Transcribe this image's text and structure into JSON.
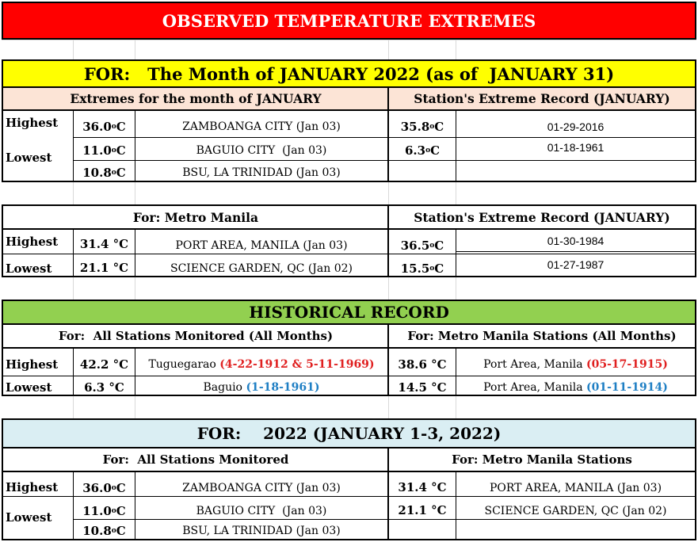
{
  "title": "OBSERVED TEMPERATURE EXTREMES",
  "month_banner": "FOR:   The Month of JANUARY 2022 (as of  JANUARY 31)",
  "section1": {
    "left_header": "Extremes for the month of JANUARY",
    "right_header": "Station's Extreme Record (JANUARY)",
    "rows": [
      {
        "label": "Highest",
        "value": "36.0",
        "unit": "C",
        "station": "ZAMBOANGA CITY (Jan 03)",
        "rec_value": "35.8",
        "rec_date": "01-29-2016"
      },
      {
        "label": "Lowest",
        "value": "11.0",
        "unit": "C",
        "station": "BAGUIO CITY  (Jan 03)",
        "rec_value": "6.3",
        "rec_date": "01-18-1961"
      },
      {
        "label": "",
        "value": "10.8",
        "unit": "C",
        "station": "BSU, LA TRINIDAD (Jan 03)",
        "rec_value": "",
        "rec_date": ""
      }
    ]
  },
  "section2": {
    "left_header": "For: Metro Manila",
    "right_header": "Station's Extreme Record (JANUARY)",
    "rows": [
      {
        "label": "Highest",
        "value": "31.4 °C",
        "station": "PORT AREA, MANILA (Jan 03)",
        "rec_value": "36.5",
        "rec_date": "01-30-1984"
      },
      {
        "label": "Lowest",
        "value": "21.1 °C",
        "station": "SCIENCE GARDEN, QC (Jan 02)",
        "rec_value": "15.5",
        "rec_date": "01-27-1987"
      }
    ]
  },
  "historical": {
    "banner": "HISTORICAL RECORD",
    "left_header": "For:  All Stations Monitored (All Months)",
    "right_header": "For: Metro Manila Stations (All Months)",
    "rows": [
      {
        "label": "Highest",
        "value": "42.2 °C",
        "station": "Tuguegarao ",
        "station_hl": "(4-22-1912 & 5-11-1969)",
        "mm_value": "38.6 °C",
        "mm_station": "Port Area, Manila ",
        "mm_hl": "(05-17-1915)"
      },
      {
        "label": "Lowest",
        "value": "6.3 °C",
        "station": "Baguio ",
        "station_hl": "(1-18-1961)",
        "mm_value": "14.5 °C",
        "mm_station": "Port Area, Manila ",
        "mm_hl": "(01-11-1914)"
      }
    ]
  },
  "year_section": {
    "banner": "FOR:    2022 (JANUARY 1-3, 2022)",
    "left_header": "For:  All Stations Monitored",
    "right_header": "For: Metro Manila Stations",
    "rows": [
      {
        "label": "Highest",
        "value": "36.0",
        "station": "ZAMBOANGA CITY (Jan 03)",
        "mm_value": "31.4 °C",
        "mm_station": "PORT AREA, MANILA (Jan 03)"
      },
      {
        "label": "Lowest",
        "value": "11.0",
        "station": "BAGUIO CITY  (Jan 03)",
        "mm_value": "21.1 °C",
        "mm_station": "SCIENCE GARDEN, QC (Jan 02)"
      },
      {
        "label": "",
        "value": "10.8",
        "station": "BSU, LA TRINIDAD (Jan 03)",
        "mm_value": "",
        "mm_station": ""
      }
    ]
  },
  "colors": {
    "title_bg": "#ff0000",
    "month_bg": "#ffff00",
    "sec1_header_bg": "#fce4d6",
    "historical_bg": "#92d050",
    "year_bg": "#daeef3",
    "red_text": "#e02020",
    "blue_text": "#1f7fc4"
  }
}
